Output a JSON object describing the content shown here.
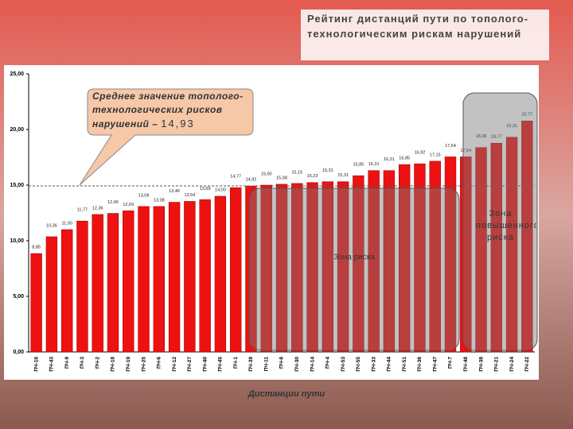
{
  "chart_data": {
    "type": "bar",
    "title": "Рейтинг дистанций пути по тополого-технологическим рискам нарушений",
    "x_label": "Дистанции пути",
    "categories": [
      "ПЧ-16",
      "ПЧ-43",
      "ПЧ-9",
      "ПЧ-3",
      "ПЧ-2",
      "ПЧ-18",
      "ПЧ-19",
      "ПЧ-25",
      "ПЧ-6",
      "ПЧ-12",
      "ПЧ-27",
      "ПЧ-40",
      "ПЧ-45",
      "ПЧ-1",
      "ПЧ-39",
      "ПЧ-11",
      "ПЧ-8",
      "ПЧ-30",
      "ПЧ-14",
      "ПЧ-4",
      "ПЧ-53",
      "ПЧ-55",
      "ПЧ-33",
      "ПЧ-44",
      "ПЧ-51",
      "ПЧ-36",
      "ПЧ-47",
      "ПЧ-7",
      "ПЧ-48",
      "ПЧ-38",
      "ПЧ-21",
      "ПЧ-24",
      "ПЧ-22"
    ],
    "values": [
      8.85,
      10.36,
      11.0,
      11.77,
      12.36,
      12.46,
      12.69,
      13.08,
      13.08,
      13.46,
      13.54,
      13.69,
      14.0,
      14.77,
      14.92,
      15.0,
      15.08,
      15.15,
      15.23,
      15.31,
      15.31,
      15.85,
      16.31,
      16.31,
      16.85,
      16.92,
      17.15,
      17.54,
      17.54,
      18.38,
      18.77,
      19.31,
      20.77
    ],
    "value_labels": [
      "8,85",
      "10,36",
      "11,00",
      "11,77",
      "12,36",
      "12,46",
      "12,69",
      "13,08",
      "13,08",
      "13,46",
      "13,54",
      "13,69",
      "14,00",
      "14,77",
      "14,92",
      "15,00",
      "15,08",
      "15,15",
      "15,23",
      "15,31",
      "15,31",
      "15,85",
      "16,31",
      "16,31",
      "16,85",
      "16,92",
      "17,15",
      "17,54",
      "17,54",
      "18,38",
      "18,77",
      "19,31",
      "20,77"
    ],
    "color": "#ee1111",
    "ylim": [
      0,
      25
    ],
    "yticks": [
      {
        "value": 0,
        "label": "0,00"
      },
      {
        "value": 5,
        "label": "5,00"
      },
      {
        "value": 10,
        "label": "10,00"
      },
      {
        "value": 15,
        "label": "15,00"
      },
      {
        "value": 20,
        "label": "20,00"
      },
      {
        "value": 25,
        "label": "25,00"
      }
    ],
    "mean": {
      "value": 14.93,
      "label": "14,93"
    },
    "mean_text": "Среднее значение тополого-технологических рисков нарушений –",
    "zone_risk": "Зона риска",
    "zone_high_risk": "Зона повышенного риска"
  }
}
